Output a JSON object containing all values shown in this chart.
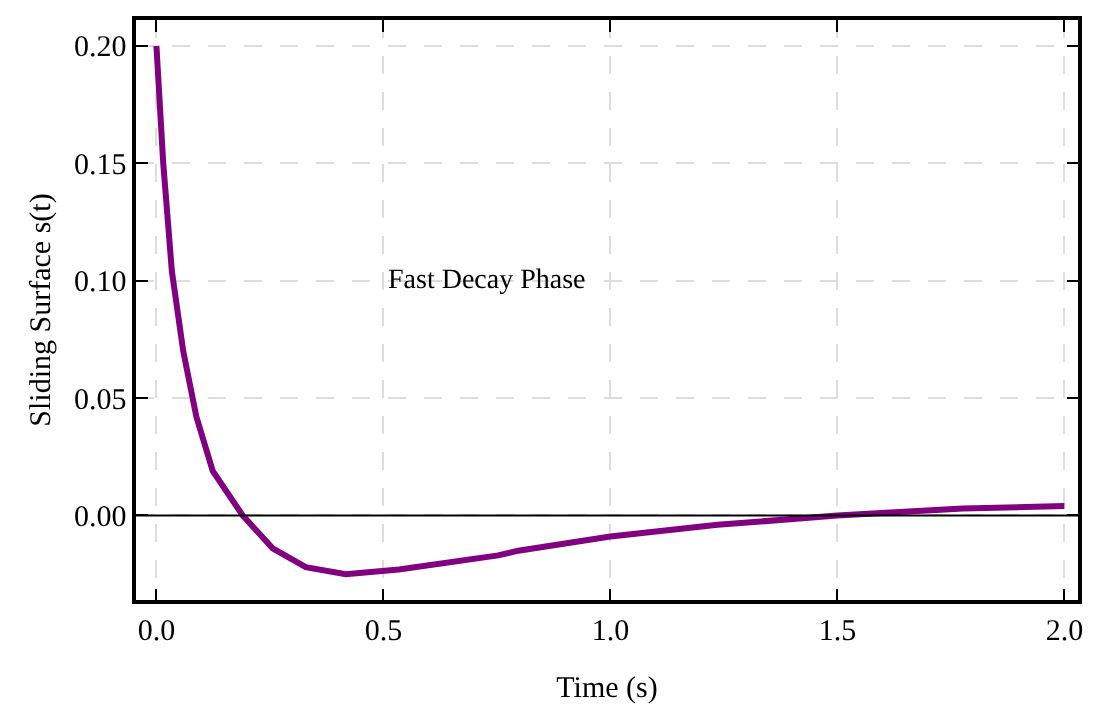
{
  "chart_data": {
    "type": "line",
    "xlabel": "Time (s)",
    "ylabel": "Sliding Surface s(t)",
    "x": [
      0,
      0.015,
      0.034,
      0.059,
      0.088,
      0.124,
      0.19,
      0.256,
      0.329,
      0.417,
      0.534,
      0.753,
      0.797,
      1.0,
      1.236,
      1.5,
      1.776,
      2.0
    ],
    "series": [
      {
        "color": "#800080",
        "values": [
          0.2,
          0.15,
          0.104,
          0.07,
          0.042,
          0.019,
          0.0,
          -0.014,
          -0.022,
          -0.025,
          -0.023,
          -0.017,
          -0.015,
          -0.009,
          -0.004,
          0.0,
          0.003,
          0.004
        ]
      }
    ],
    "xlim": [
      -0.045,
      2.03
    ],
    "ylim": [
      -0.036,
      0.211
    ],
    "xticks": [
      {
        "value": 0,
        "label": "0.0"
      },
      {
        "value": 0.5,
        "label": "0.5"
      },
      {
        "value": 1,
        "label": "1.0"
      },
      {
        "value": 1.5,
        "label": "1.5"
      },
      {
        "value": 2,
        "label": "2.0"
      }
    ],
    "yticks": [
      {
        "value": 0,
        "label": "0.00"
      },
      {
        "value": 0.05,
        "label": "0.05"
      },
      {
        "value": 0.1,
        "label": "0.10"
      },
      {
        "value": 0.15,
        "label": "0.15"
      },
      {
        "value": 0.2,
        "label": "0.20"
      }
    ],
    "grid": true,
    "marker": "none",
    "line_style": "solid",
    "ref_lines": [
      {
        "axis": "y",
        "value": 0,
        "color": "#000000"
      }
    ],
    "annotations": [
      "Fast Decay Phase"
    ]
  }
}
